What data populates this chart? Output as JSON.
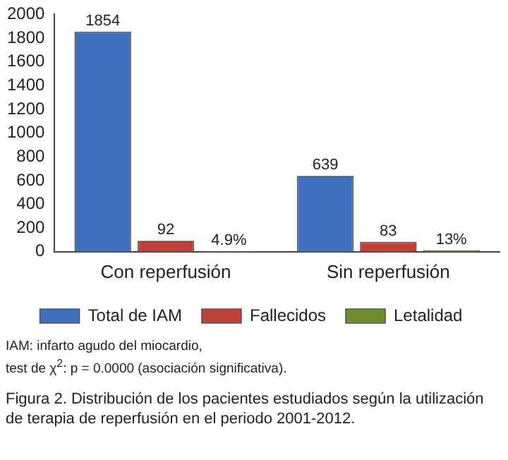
{
  "chart_data": {
    "type": "bar",
    "categories": [
      "Con reperfusión",
      "Sin reperfusión"
    ],
    "series": [
      {
        "name": "Total de IAM",
        "color": "#3f6fbf",
        "values": [
          1854,
          639
        ],
        "value_labels": [
          "1854",
          "639"
        ]
      },
      {
        "name": "Fallecidos",
        "color": "#c0413a",
        "values": [
          92,
          83
        ],
        "value_labels": [
          "92",
          "83"
        ]
      },
      {
        "name": "Letalidad",
        "color": "#6f8f2f",
        "values": [
          4.9,
          13
        ],
        "value_labels": [
          "4.9%",
          "13%"
        ]
      }
    ],
    "ylim": [
      0,
      2000
    ],
    "yticks": [
      0,
      200,
      400,
      600,
      800,
      1000,
      1200,
      1400,
      1600,
      1800,
      2000
    ],
    "grid": false,
    "legend": "bottom",
    "annotations": [
      "IAM: infarto agudo del miocardio,\ntest de χ$^{2}$: p = 0.0000 (asociación significativa).",
      "Figura 2. Distribución de los pacientes estudiados según la utilización de terapia de reperfusión en el periodo 2001-2012."
    ]
  }
}
